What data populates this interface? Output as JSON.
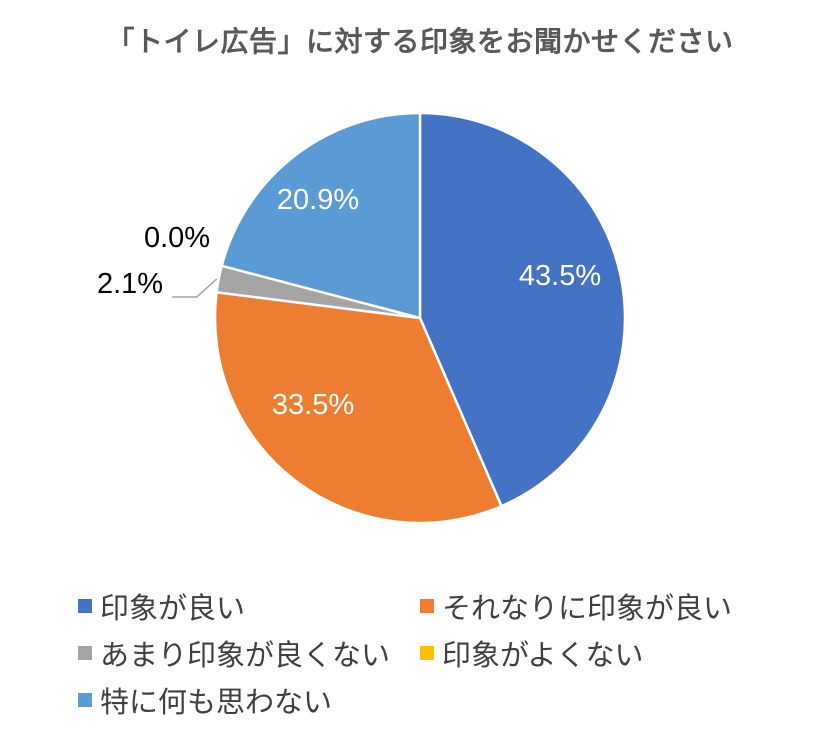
{
  "title": "「トイレ広告」に対する印象をお聞かせください",
  "chart_data": {
    "type": "pie",
    "title": "「トイレ広告」に対する印象をお聞かせください",
    "start_angle_deg": 0,
    "direction": "clockwise",
    "legend_position": "bottom",
    "slices": [
      {
        "label": "印象が良い",
        "value": 43.5,
        "value_label": "43.5%",
        "color": "#4472C4",
        "label_color": "#ffffff"
      },
      {
        "label": "それなりに印象が良い",
        "value": 33.5,
        "value_label": "33.5%",
        "color": "#ED7D31",
        "label_color": "#ffffff"
      },
      {
        "label": "あまり印象が良くない",
        "value": 2.1,
        "value_label": "2.1%",
        "color": "#A5A5A5",
        "label_color": "#000000"
      },
      {
        "label": "印象がよくない",
        "value": 0.0,
        "value_label": "0.0%",
        "color": "#FFC000",
        "label_color": "#000000"
      },
      {
        "label": "特に何も思わない",
        "value": 20.9,
        "value_label": "20.9%",
        "color": "#5B9BD5",
        "label_color": "#ffffff"
      }
    ]
  }
}
